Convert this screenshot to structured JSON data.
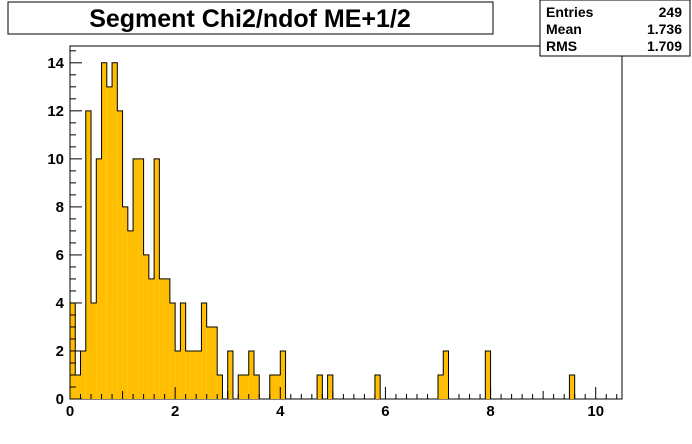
{
  "chart_data": {
    "type": "bar",
    "title": "Segment Chi2/ndof ME+1/2",
    "xlabel": "",
    "ylabel": "",
    "xlim": [
      0,
      10.5
    ],
    "ylim": [
      0,
      14.7
    ],
    "bin_width": 0.1,
    "bars_x_start": [
      0.0,
      0.1,
      0.2,
      0.3,
      0.4,
      0.5,
      0.6,
      0.7,
      0.8,
      0.9,
      1.0,
      1.1,
      1.2,
      1.3,
      1.4,
      1.5,
      1.6,
      1.7,
      1.8,
      1.9,
      2.0,
      2.1,
      2.2,
      2.3,
      2.4,
      2.5,
      2.6,
      2.7,
      2.8,
      2.9,
      3.0,
      3.1,
      3.2,
      3.3,
      3.4,
      3.5,
      3.6,
      3.7,
      3.8,
      3.9,
      4.0,
      4.1,
      4.2,
      4.3,
      4.4,
      4.5,
      4.6,
      4.7,
      4.8,
      4.9,
      5.0,
      5.1,
      5.2,
      5.3,
      5.4,
      5.5,
      5.6,
      5.7,
      5.8,
      5.9,
      6.0,
      6.1,
      6.2,
      6.3,
      6.4,
      6.5,
      6.6,
      6.7,
      6.8,
      6.9,
      7.0,
      7.1,
      7.2,
      7.3,
      7.4,
      7.5,
      7.6,
      7.7,
      7.8,
      7.9,
      8.0,
      8.1,
      8.2,
      8.3,
      8.4,
      8.5,
      8.6,
      8.7,
      8.8,
      8.9,
      9.0,
      9.1,
      9.2,
      9.3,
      9.4,
      9.5,
      9.6,
      9.7,
      9.8,
      9.9,
      10.0,
      10.1,
      10.2,
      10.3,
      10.4
    ],
    "values": [
      4,
      1,
      2,
      12,
      4,
      10,
      14,
      13,
      14,
      12,
      8,
      7,
      10,
      10,
      6,
      5,
      10,
      5,
      5,
      4,
      2,
      4,
      2,
      2,
      2,
      4,
      3,
      3,
      1,
      0,
      2,
      0,
      1,
      1,
      2,
      1,
      0,
      0,
      1,
      1,
      2,
      0,
      0,
      0,
      0,
      0,
      0,
      1,
      0,
      1,
      0,
      0,
      0,
      0,
      0,
      0,
      0,
      0,
      1,
      0,
      0,
      0,
      0,
      0,
      0,
      0,
      0,
      0,
      0,
      0,
      1,
      2,
      0,
      0,
      0,
      0,
      0,
      0,
      0,
      2,
      0,
      0,
      0,
      0,
      0,
      0,
      0,
      0,
      0,
      0,
      0,
      0,
      0,
      0,
      0,
      1,
      0,
      0,
      0,
      0,
      0,
      0,
      0,
      0,
      0
    ],
    "x_ticks": [
      0,
      2,
      4,
      6,
      8,
      10
    ],
    "y_ticks": [
      0,
      2,
      4,
      6,
      8,
      10,
      12,
      14
    ],
    "grid": false,
    "fill_color": "#ffbf00",
    "line_color": "#000000",
    "stats": [
      {
        "label": "Entries",
        "value": "249"
      },
      {
        "label": "Mean",
        "value": "1.736"
      },
      {
        "label": "RMS",
        "value": "1.709"
      }
    ]
  }
}
